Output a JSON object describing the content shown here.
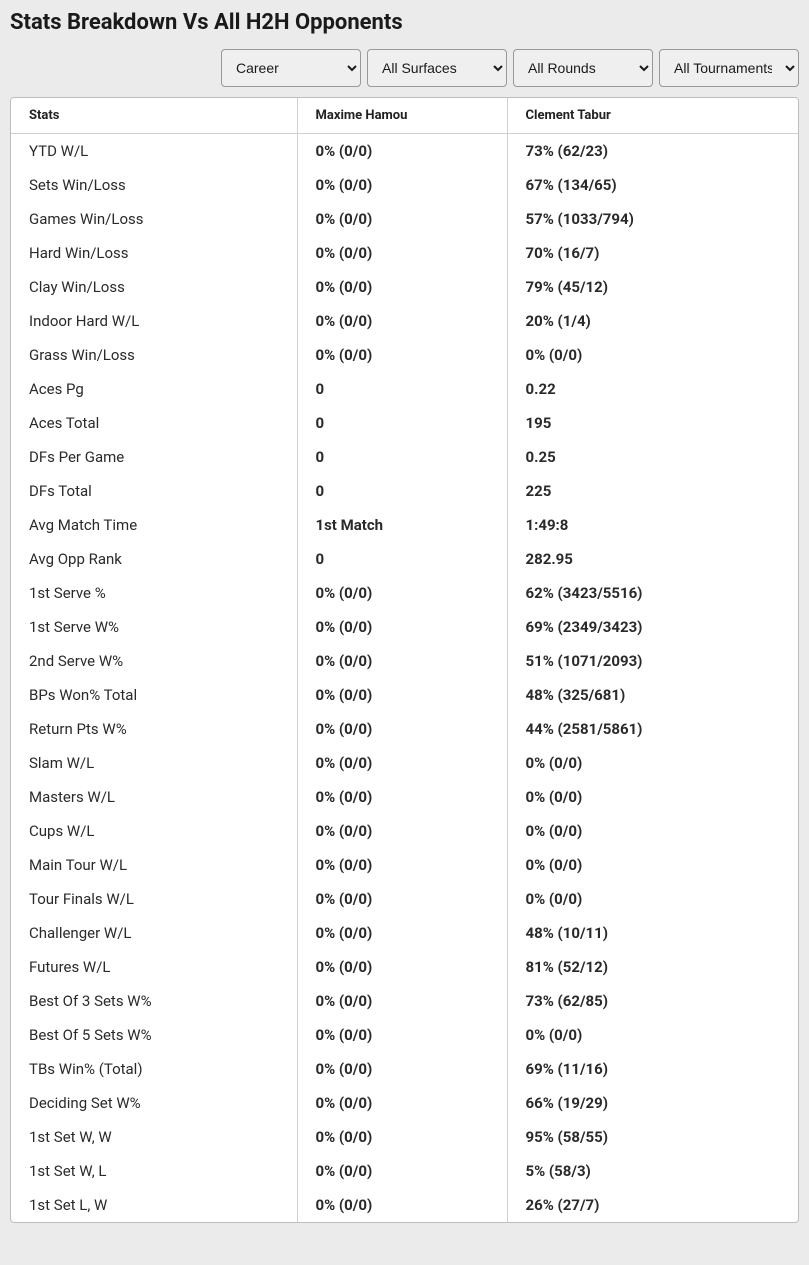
{
  "title": "Stats Breakdown Vs All H2H Opponents",
  "filters": {
    "period": "Career",
    "surface": "All Surfaces",
    "round": "All Rounds",
    "tournament": "All Tournaments"
  },
  "table": {
    "headers": {
      "stat": "Stats",
      "player1": "Maxime Hamou",
      "player2": "Clement Tabur"
    },
    "rows": [
      {
        "stat": "YTD W/L",
        "p1": "0% (0/0)",
        "p2": "73% (62/23)"
      },
      {
        "stat": "Sets Win/Loss",
        "p1": "0% (0/0)",
        "p2": "67% (134/65)"
      },
      {
        "stat": "Games Win/Loss",
        "p1": "0% (0/0)",
        "p2": "57% (1033/794)"
      },
      {
        "stat": "Hard Win/Loss",
        "p1": "0% (0/0)",
        "p2": "70% (16/7)"
      },
      {
        "stat": "Clay Win/Loss",
        "p1": "0% (0/0)",
        "p2": "79% (45/12)"
      },
      {
        "stat": "Indoor Hard W/L",
        "p1": "0% (0/0)",
        "p2": "20% (1/4)"
      },
      {
        "stat": "Grass Win/Loss",
        "p1": "0% (0/0)",
        "p2": "0% (0/0)"
      },
      {
        "stat": "Aces Pg",
        "p1": "0",
        "p2": "0.22"
      },
      {
        "stat": "Aces Total",
        "p1": "0",
        "p2": "195"
      },
      {
        "stat": "DFs Per Game",
        "p1": "0",
        "p2": "0.25"
      },
      {
        "stat": "DFs Total",
        "p1": "0",
        "p2": "225"
      },
      {
        "stat": "Avg Match Time",
        "p1": "1st Match",
        "p2": "1:49:8"
      },
      {
        "stat": "Avg Opp Rank",
        "p1": "0",
        "p2": "282.95"
      },
      {
        "stat": "1st Serve %",
        "p1": "0% (0/0)",
        "p2": "62% (3423/5516)"
      },
      {
        "stat": "1st Serve W%",
        "p1": "0% (0/0)",
        "p2": "69% (2349/3423)"
      },
      {
        "stat": "2nd Serve W%",
        "p1": "0% (0/0)",
        "p2": "51% (1071/2093)"
      },
      {
        "stat": "BPs Won% Total",
        "p1": "0% (0/0)",
        "p2": "48% (325/681)"
      },
      {
        "stat": "Return Pts W%",
        "p1": "0% (0/0)",
        "p2": "44% (2581/5861)"
      },
      {
        "stat": "Slam W/L",
        "p1": "0% (0/0)",
        "p2": "0% (0/0)"
      },
      {
        "stat": "Masters W/L",
        "p1": "0% (0/0)",
        "p2": "0% (0/0)"
      },
      {
        "stat": "Cups W/L",
        "p1": "0% (0/0)",
        "p2": "0% (0/0)"
      },
      {
        "stat": "Main Tour W/L",
        "p1": "0% (0/0)",
        "p2": "0% (0/0)"
      },
      {
        "stat": "Tour Finals W/L",
        "p1": "0% (0/0)",
        "p2": "0% (0/0)"
      },
      {
        "stat": "Challenger W/L",
        "p1": "0% (0/0)",
        "p2": "48% (10/11)"
      },
      {
        "stat": "Futures W/L",
        "p1": "0% (0/0)",
        "p2": "81% (52/12)"
      },
      {
        "stat": "Best Of 3 Sets W%",
        "p1": "0% (0/0)",
        "p2": "73% (62/85)"
      },
      {
        "stat": "Best Of 5 Sets W%",
        "p1": "0% (0/0)",
        "p2": "0% (0/0)"
      },
      {
        "stat": "TBs Win% (Total)",
        "p1": "0% (0/0)",
        "p2": "69% (11/16)"
      },
      {
        "stat": "Deciding Set W%",
        "p1": "0% (0/0)",
        "p2": "66% (19/29)"
      },
      {
        "stat": "1st Set W, W",
        "p1": "0% (0/0)",
        "p2": "95% (58/55)"
      },
      {
        "stat": "1st Set W, L",
        "p1": "0% (0/0)",
        "p2": "5% (58/3)"
      },
      {
        "stat": "1st Set L, W",
        "p1": "0% (0/0)",
        "p2": "26% (27/7)"
      }
    ]
  }
}
